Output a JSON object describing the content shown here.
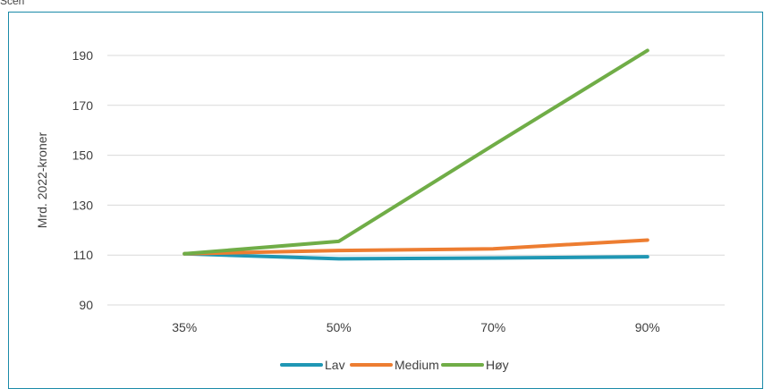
{
  "header": {
    "text": "Scen"
  },
  "chart_data": {
    "type": "line",
    "title": "",
    "xlabel": "",
    "ylabel": "Mrd. 2022-kroner",
    "categories": [
      "35%",
      "50%",
      "70%",
      "90%"
    ],
    "ylim": [
      90,
      190
    ],
    "yticks": [
      90,
      110,
      130,
      150,
      170,
      190
    ],
    "grid": true,
    "legend_position": "bottom",
    "series": [
      {
        "name": "Lav",
        "color": "#1f97b4",
        "values": [
          110.5,
          108.5,
          108.8,
          109.3
        ]
      },
      {
        "name": "Medium",
        "color": "#ed7d31",
        "values": [
          110.5,
          111.8,
          112.5,
          116.0
        ]
      },
      {
        "name": "Høy",
        "color": "#70ad47",
        "values": [
          110.5,
          115.5,
          154.0,
          192.0
        ]
      }
    ]
  }
}
